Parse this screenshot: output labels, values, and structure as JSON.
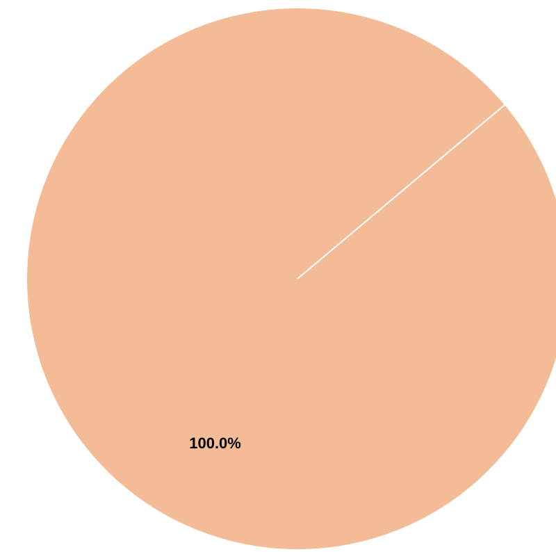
{
  "chart_data": {
    "type": "pie",
    "title": "",
    "slices": [
      {
        "value": 100.0,
        "label": "100.0%",
        "color": "#f4bc96"
      }
    ],
    "edge_color": "#ffffff",
    "legend": "none"
  }
}
